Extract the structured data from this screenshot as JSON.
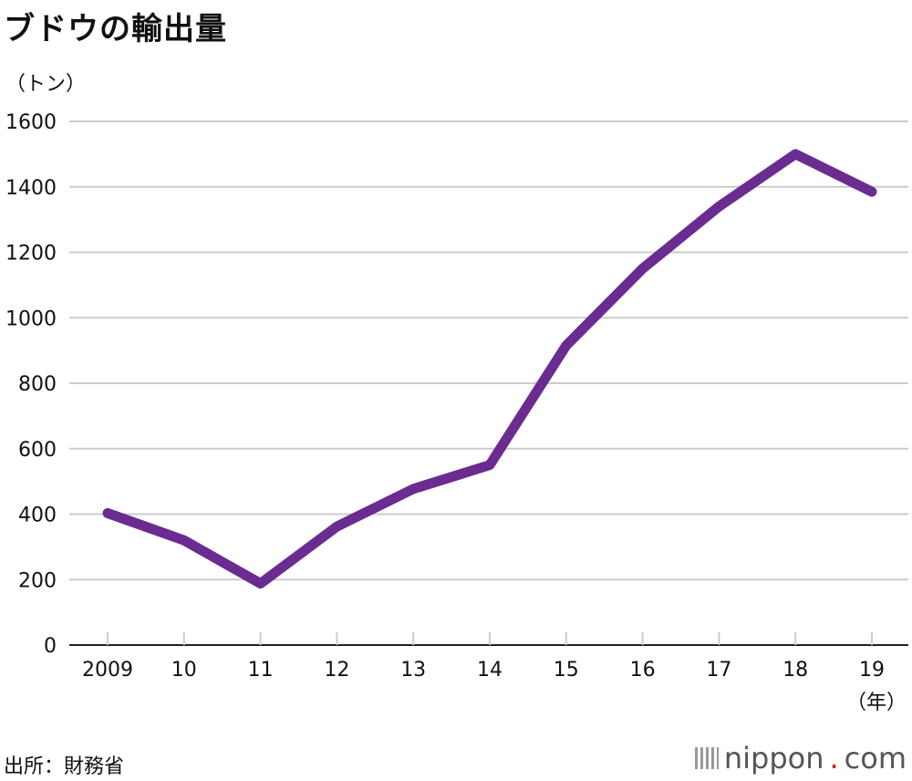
{
  "title": "ブドウの輸出量",
  "y_unit": "（トン）",
  "x_unit": "（年）",
  "source": "出所：財務省",
  "brand": {
    "name": "nippon",
    "dot": ".",
    "suffix": "com"
  },
  "colors": {
    "line": "#6a2c91",
    "grid": "#cccccc",
    "axis": "#222222"
  },
  "chart_data": {
    "type": "line",
    "categories": [
      "2009",
      "10",
      "11",
      "12",
      "13",
      "14",
      "15",
      "16",
      "17",
      "18",
      "19"
    ],
    "series": [
      {
        "values": [
          403,
          320,
          188,
          362,
          477,
          550,
          915,
          1150,
          1340,
          1500,
          1385
        ]
      }
    ],
    "ylim": [
      0,
      1600
    ],
    "yticks": [
      0,
      200,
      400,
      600,
      800,
      1000,
      1200,
      1400,
      1600
    ],
    "grid": true
  }
}
